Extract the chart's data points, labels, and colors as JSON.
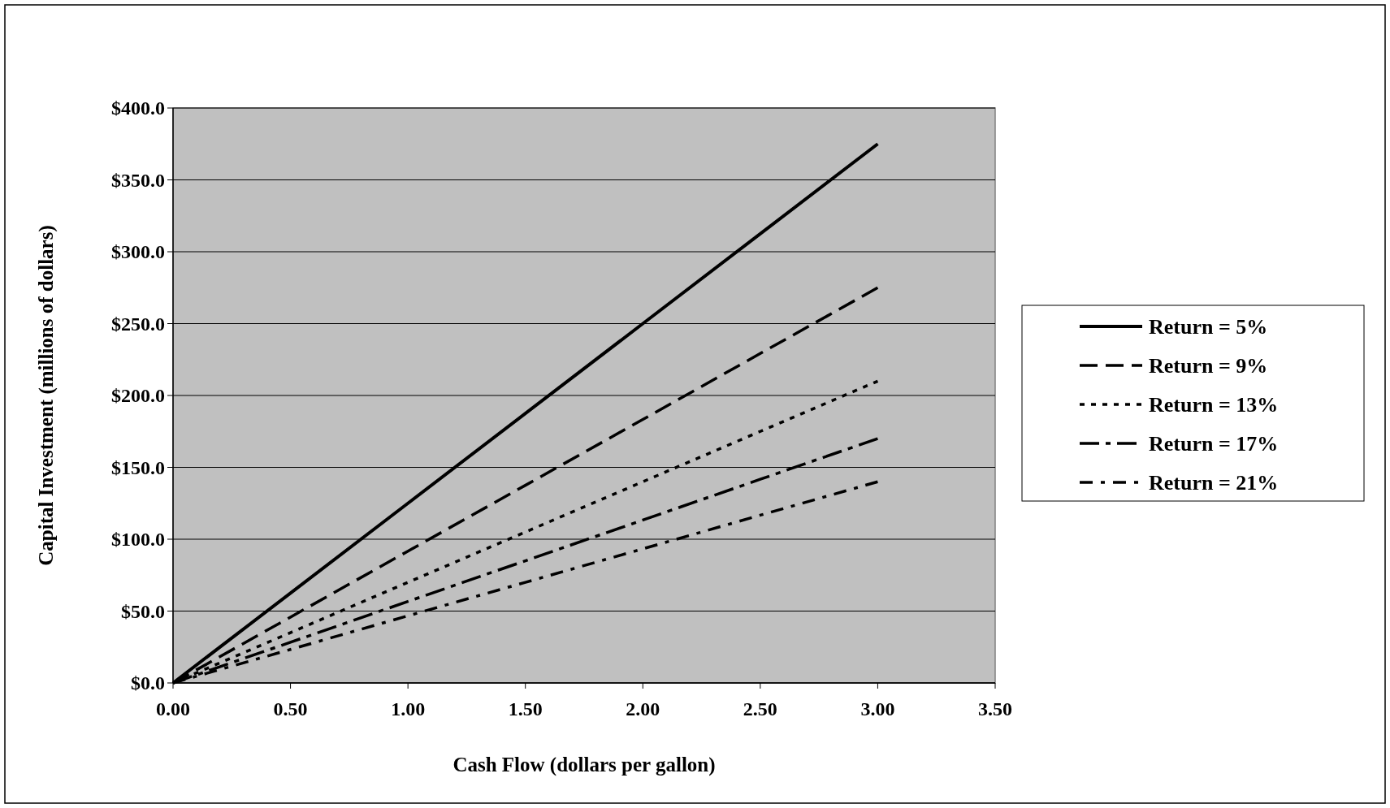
{
  "chart_data": {
    "type": "line",
    "xlabel": "Cash Flow (dollars per gallon)",
    "ylabel": "Capital Investment (millions of dollars)",
    "x": [
      0,
      0.5,
      1,
      1.5,
      2,
      2.5,
      3
    ],
    "series": [
      {
        "name": "Return = 5%",
        "color": "#000000",
        "line_style": "solid",
        "values": [
          0,
          62.5,
          125,
          187.5,
          250,
          312.5,
          375
        ]
      },
      {
        "name": "Return = 9%",
        "color": "#000000",
        "line_style": "dashed",
        "values": [
          0,
          45.8,
          91.7,
          137.5,
          183.3,
          229.2,
          275
        ]
      },
      {
        "name": "Return = 13%",
        "color": "#000000",
        "line_style": "dotted",
        "values": [
          0,
          35,
          70,
          105,
          140,
          175,
          210
        ]
      },
      {
        "name": "Return = 17%",
        "color": "#000000",
        "line_style": "dashed",
        "values": [
          0,
          28.3,
          56.7,
          85,
          113.3,
          141.7,
          170
        ]
      },
      {
        "name": "Return = 21%",
        "color": "#000000",
        "line_style": "dashed",
        "values": [
          0,
          23.3,
          46.7,
          70,
          93.3,
          116.7,
          140
        ]
      }
    ],
    "xlim": [
      0,
      3.5
    ],
    "ylim": [
      0,
      400
    ],
    "xticks": [
      {
        "value": 0,
        "label": "0.00"
      },
      {
        "value": 0.5,
        "label": "0.50"
      },
      {
        "value": 1,
        "label": "1.00"
      },
      {
        "value": 1.5,
        "label": "1.50"
      },
      {
        "value": 2,
        "label": "2.00"
      },
      {
        "value": 2.5,
        "label": "2.50"
      },
      {
        "value": 3,
        "label": "3.00"
      },
      {
        "value": 3.5,
        "label": "3.50"
      }
    ],
    "yticks": [
      {
        "value": 0,
        "label": "$0.0"
      },
      {
        "value": 50,
        "label": "$50.0"
      },
      {
        "value": 100,
        "label": "$100.0"
      },
      {
        "value": 150,
        "label": "$150.0"
      },
      {
        "value": 200,
        "label": "$200.0"
      },
      {
        "value": 250,
        "label": "$250.0"
      },
      {
        "value": 300,
        "label": "$300.0"
      },
      {
        "value": 350,
        "label": "$350.0"
      },
      {
        "value": 400,
        "label": "$400.0"
      }
    ],
    "grid": "y",
    "legend": "right"
  }
}
